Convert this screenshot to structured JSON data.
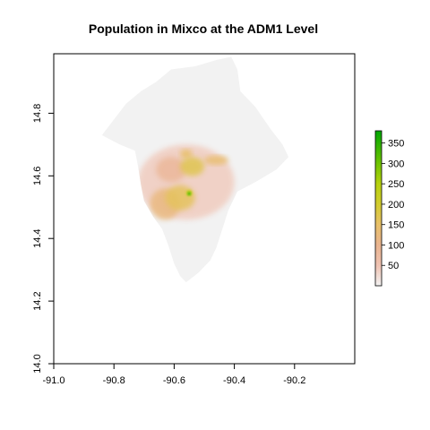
{
  "chart_data": {
    "type": "heatmap",
    "title": "Population in Mixco at the ADM1 Level",
    "xlim": [
      -91.0,
      -90.0
    ],
    "ylim": [
      14.0,
      14.99
    ],
    "x_ticks": [
      -91.0,
      -90.8,
      -90.6,
      -90.4,
      -90.2
    ],
    "x_tick_labels": [
      "-91.0",
      "-90.8",
      "-90.6",
      "-90.4",
      "-90.2"
    ],
    "y_ticks": [
      14.0,
      14.2,
      14.4,
      14.6,
      14.8
    ],
    "y_tick_labels": [
      "14.0",
      "14.2",
      "14.4",
      "14.6",
      "14.8"
    ],
    "legend": {
      "placement": "right",
      "range": [
        0,
        380
      ],
      "ticks": [
        50,
        100,
        150,
        200,
        250,
        300,
        350
      ],
      "tick_labels": [
        "50",
        "100",
        "150",
        "200",
        "250",
        "300",
        "350"
      ],
      "color_stops": [
        {
          "value": 0,
          "color": "#f2f2f2"
        },
        {
          "value": 50,
          "color": "#efc2b2"
        },
        {
          "value": 100,
          "color": "#e9b48f"
        },
        {
          "value": 150,
          "color": "#e8c069"
        },
        {
          "value": 200,
          "color": "#d2cc2e"
        },
        {
          "value": 250,
          "color": "#b6d10e"
        },
        {
          "value": 300,
          "color": "#6fc400"
        },
        {
          "value": 380,
          "color": "#00a600"
        }
      ]
    },
    "grid": false,
    "region_outline": [
      [
        -90.61,
        14.94
      ],
      [
        -90.53,
        14.95
      ],
      [
        -90.46,
        14.97
      ],
      [
        -90.41,
        14.98
      ],
      [
        -90.39,
        14.94
      ],
      [
        -90.38,
        14.87
      ],
      [
        -90.33,
        14.82
      ],
      [
        -90.28,
        14.75
      ],
      [
        -90.24,
        14.7
      ],
      [
        -90.22,
        14.66
      ],
      [
        -90.26,
        14.62
      ],
      [
        -90.33,
        14.58
      ],
      [
        -90.39,
        14.55
      ],
      [
        -90.42,
        14.49
      ],
      [
        -90.44,
        14.43
      ],
      [
        -90.46,
        14.37
      ],
      [
        -90.48,
        14.33
      ],
      [
        -90.52,
        14.29
      ],
      [
        -90.56,
        14.26
      ],
      [
        -90.58,
        14.28
      ],
      [
        -90.6,
        14.32
      ],
      [
        -90.62,
        14.38
      ],
      [
        -90.64,
        14.43
      ],
      [
        -90.67,
        14.47
      ],
      [
        -90.7,
        14.52
      ],
      [
        -90.71,
        14.57
      ],
      [
        -90.72,
        14.63
      ],
      [
        -90.73,
        14.68
      ],
      [
        -90.78,
        14.7
      ],
      [
        -90.84,
        14.73
      ],
      [
        -90.8,
        14.78
      ],
      [
        -90.76,
        14.83
      ],
      [
        -90.71,
        14.87
      ],
      [
        -90.66,
        14.9
      ]
    ],
    "density_zones": [
      {
        "area": "ring-outskirts",
        "x": -90.56,
        "y": 14.58,
        "rx": 0.16,
        "ry": 0.12,
        "value": 40
      },
      {
        "area": "northwest-belt",
        "x": -90.61,
        "y": 14.62,
        "rx": 0.05,
        "ry": 0.04,
        "value": 85
      },
      {
        "area": "west-cluster",
        "x": -90.63,
        "y": 14.51,
        "rx": 0.05,
        "ry": 0.05,
        "value": 120
      },
      {
        "area": "core-south",
        "x": -90.58,
        "y": 14.53,
        "rx": 0.05,
        "ry": 0.04,
        "value": 160
      },
      {
        "area": "core-north",
        "x": -90.54,
        "y": 14.63,
        "rx": 0.04,
        "ry": 0.03,
        "value": 170
      },
      {
        "area": "east-band",
        "x": -90.46,
        "y": 14.65,
        "rx": 0.04,
        "ry": 0.015,
        "value": 140
      },
      {
        "area": "north-spot",
        "x": -90.56,
        "y": 14.67,
        "rx": 0.02,
        "ry": 0.015,
        "value": 150
      },
      {
        "area": "peak-center",
        "x": -90.55,
        "y": 14.545,
        "rx": 0.01,
        "ry": 0.01,
        "value": 230
      },
      {
        "area": "peak-max",
        "x": -90.55,
        "y": 14.543,
        "rx": 0.004,
        "ry": 0.004,
        "value": 360
      }
    ]
  }
}
